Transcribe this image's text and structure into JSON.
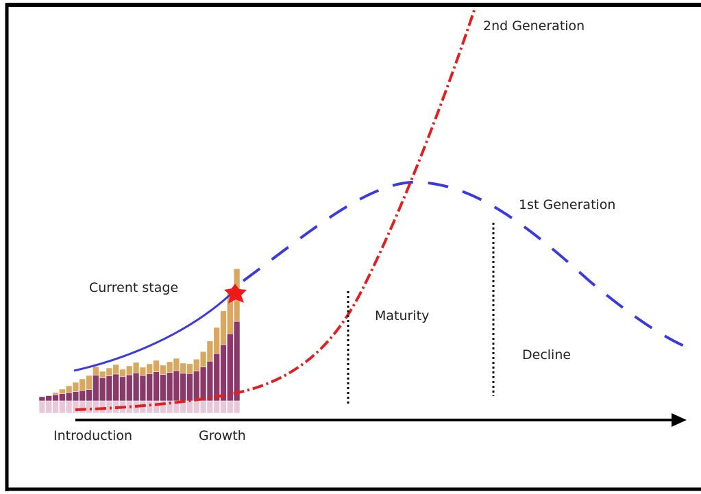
{
  "labels": {
    "second_generation": "2nd Generation",
    "first_generation": "1st Generation",
    "current_stage": "Current stage",
    "maturity": "Maturity",
    "decline": "Decline",
    "introduction": "Introduction",
    "growth": "Growth"
  }
}
